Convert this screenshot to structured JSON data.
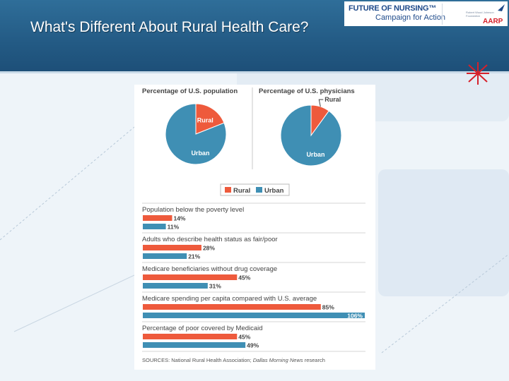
{
  "slide": {
    "title": "What's Different About Rural Health Care?"
  },
  "logos": {
    "fon": "FUTURE OF NURSING™",
    "cfa": "Campaign for Action",
    "rwjf": "Robert Wood Johnson Foundation",
    "aarp": "AARP"
  },
  "colors": {
    "rural": "#ee5a3c",
    "urban": "#3f8fb4",
    "header": "#235a84"
  },
  "chart_data": [
    {
      "type": "pie",
      "title": "Percentage of U.S. population",
      "slices": [
        {
          "label": "Rural",
          "value": 19
        },
        {
          "label": "Urban",
          "value": 81
        }
      ]
    },
    {
      "type": "pie",
      "title": "Percentage of U.S. physicians",
      "slices": [
        {
          "label": "Rural",
          "value": 10
        },
        {
          "label": "Urban",
          "value": 90
        }
      ]
    },
    {
      "type": "bar",
      "orientation": "horizontal",
      "legend": [
        "Rural",
        "Urban"
      ],
      "legend_position": "top-center",
      "groups": [
        {
          "label": "Population below the poverty level",
          "rural": 14,
          "urban": 11
        },
        {
          "label": "Adults who describe health status as fair/poor",
          "rural": 28,
          "urban": 21
        },
        {
          "label": "Medicare beneficiaries without drug coverage",
          "rural": 45,
          "urban": 31
        },
        {
          "label": "Medicare spending per capita compared with U.S. average",
          "rural": 85,
          "urban": 106
        },
        {
          "label": "Percentage of poor covered by Medicaid",
          "rural": 45,
          "urban": 49
        }
      ],
      "unit": "%",
      "xlim": [
        0,
        106
      ]
    }
  ],
  "sources_label": "SOURCES: National Rural Health Association; ",
  "sources_italic": "Dallas Morning News",
  "sources_tail": " research"
}
